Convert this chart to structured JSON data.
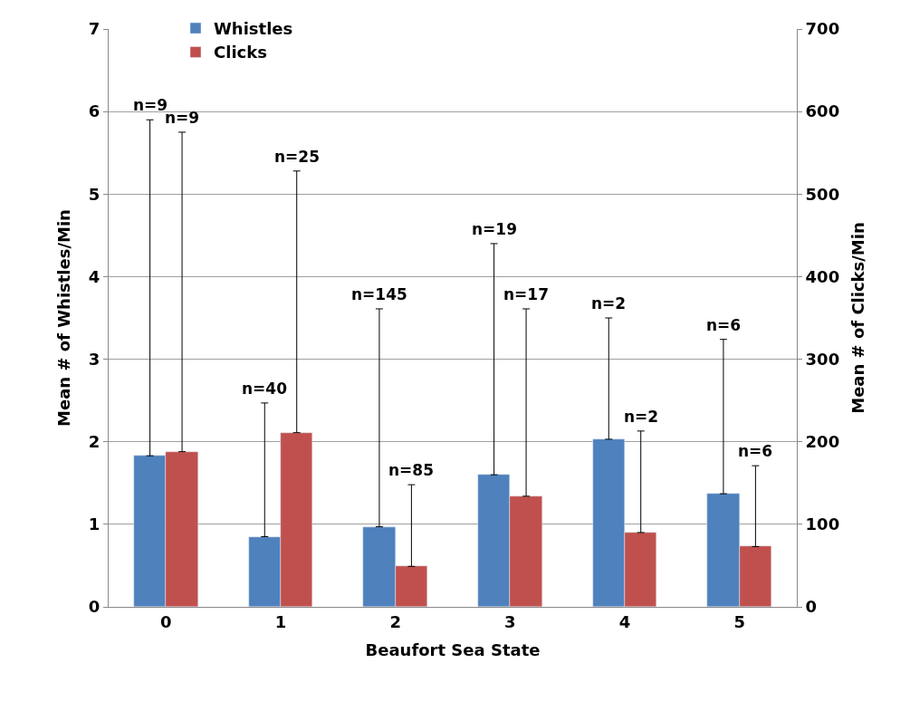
{
  "chart_data": {
    "type": "bar",
    "xlabel": "Beaufort Sea State",
    "ylabel": "Mean # of Whistles/Min",
    "y2label": "Mean # of Clicks/Min",
    "categories": [
      "0",
      "1",
      "2",
      "3",
      "4",
      "5"
    ],
    "series": [
      {
        "name": "Whistles",
        "color": "#4f81bd",
        "values": [
          1.83,
          0.85,
          0.97,
          1.6,
          2.03,
          1.37
        ],
        "errors": [
          [
            1.83,
            5.9
          ],
          [
            0.85,
            2.47
          ],
          [
            0.97,
            3.61
          ],
          [
            1.6,
            4.4
          ],
          [
            2.03,
            3.5
          ],
          [
            1.37,
            3.24
          ]
        ]
      },
      {
        "name": "Clicks",
        "color": "#c0504d",
        "axis": "y2",
        "values": [
          188,
          211,
          49,
          134,
          90,
          73
        ],
        "errors": [
          [
            188,
            575
          ],
          [
            211,
            528
          ],
          [
            49,
            148
          ],
          [
            134,
            361
          ],
          [
            90,
            213
          ],
          [
            73,
            171
          ]
        ]
      }
    ],
    "annotations": [
      "n=9",
      "n=9",
      "n=40",
      "n=25",
      "n=145",
      "n=85",
      "n=19",
      "n=17",
      "n=2",
      "n=2",
      "n=6",
      "n=6"
    ],
    "ylim": [
      0,
      7
    ],
    "yticks": [
      0,
      1,
      2,
      3,
      4,
      5,
      6,
      7
    ],
    "y2lim": [
      0,
      700
    ],
    "y2ticks": [
      0,
      100,
      200,
      300,
      400,
      500,
      600,
      700
    ],
    "grid": "y",
    "legend": "top left"
  }
}
